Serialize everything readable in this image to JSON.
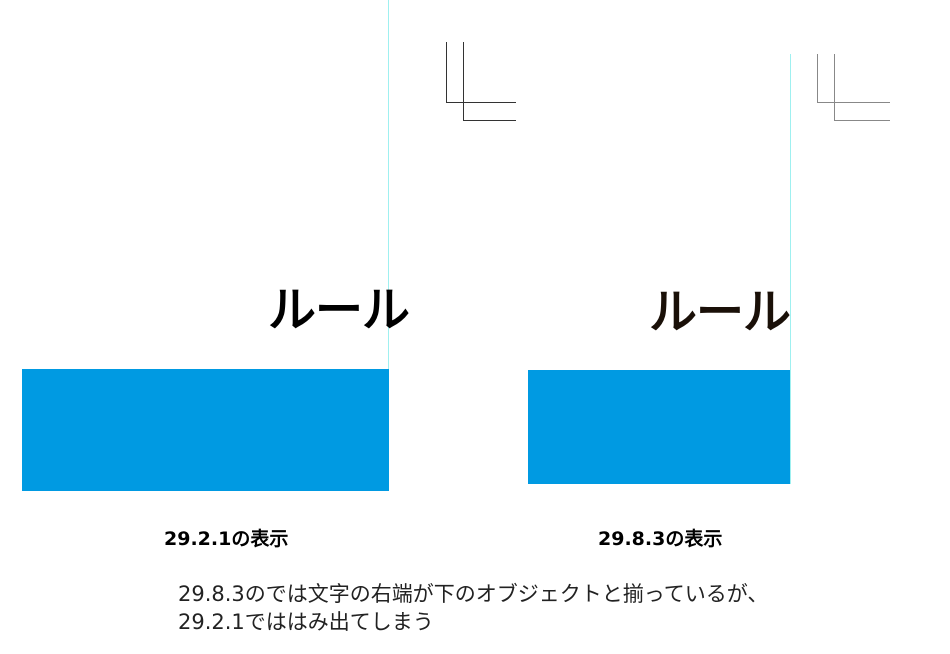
{
  "colors": {
    "object_fill": "#009ae2",
    "guide": "#9ff0f0",
    "crop_mark_left": "#333333",
    "crop_mark_right": "#888888",
    "text_left": "#000000",
    "text_right": "#1a1008"
  },
  "panels": [
    {
      "sample_text": "ルール",
      "caption": "29.2.1の表示"
    },
    {
      "sample_text": "ルール",
      "caption": "29.8.3の表示"
    }
  ],
  "notes": [
    "29.8.3のでは文字の右端が下のオブジェクトと揃っているが、",
    "29.2.1でははみ出てしまう"
  ]
}
